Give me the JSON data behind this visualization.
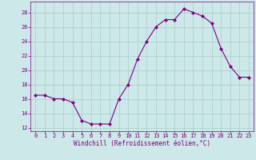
{
  "x": [
    0,
    1,
    2,
    3,
    4,
    5,
    6,
    7,
    8,
    9,
    10,
    11,
    12,
    13,
    14,
    15,
    16,
    17,
    18,
    19,
    20,
    21,
    22,
    23
  ],
  "y": [
    16.5,
    16.5,
    16.0,
    16.0,
    15.5,
    13.0,
    12.5,
    12.5,
    12.5,
    16.0,
    18.0,
    21.5,
    24.0,
    26.0,
    27.0,
    27.0,
    28.5,
    28.0,
    27.5,
    26.5,
    23.0,
    20.5,
    19.0,
    19.0
  ],
  "line_color": "#800080",
  "marker": "D",
  "marker_size": 2,
  "xlabel": "Windchill (Refroidissement éolien,°C)",
  "xlim": [
    -0.5,
    23.5
  ],
  "ylim": [
    11.5,
    29.5
  ],
  "yticks": [
    12,
    14,
    16,
    18,
    20,
    22,
    24,
    26,
    28
  ],
  "xticks": [
    0,
    1,
    2,
    3,
    4,
    5,
    6,
    7,
    8,
    9,
    10,
    11,
    12,
    13,
    14,
    15,
    16,
    17,
    18,
    19,
    20,
    21,
    22,
    23
  ],
  "bg_color": "#cce8e8",
  "grid_color": "#aacccc",
  "label_color": "#800080",
  "tick_color": "#800080",
  "font_family": "monospace",
  "tick_fontsize": 5,
  "xlabel_fontsize": 5.5
}
